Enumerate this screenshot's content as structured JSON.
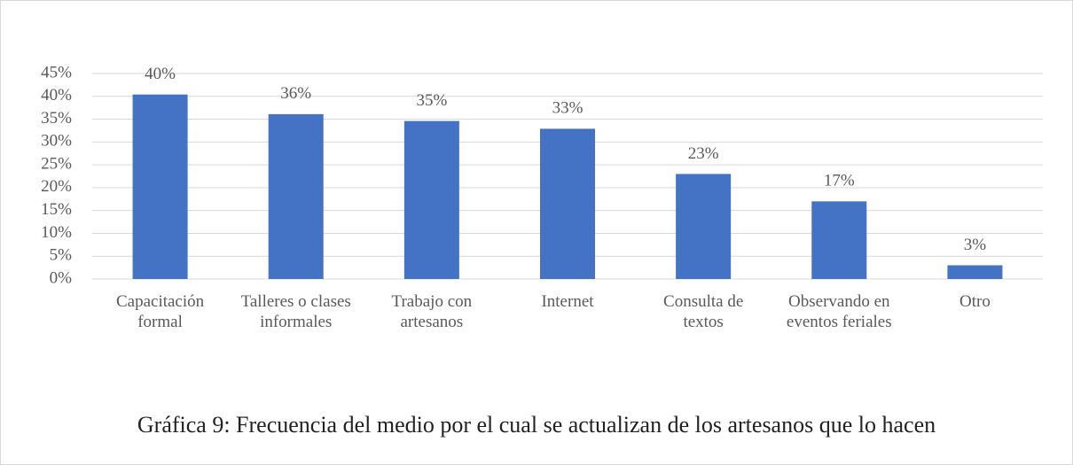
{
  "chart_data": {
    "type": "bar",
    "caption": "Gráfica 9: Frecuencia del medio por el cual se actualizan de los artesanos que lo hacen",
    "categories": [
      "Capacitación formal",
      "Talleres o clases informales",
      "Trabajo con artesanos",
      "Internet",
      "Consulta de textos",
      "Observando en eventos feriales",
      "Otro"
    ],
    "values": [
      40.4,
      36.1,
      34.6,
      32.9,
      23,
      17,
      3
    ],
    "value_labels": [
      "40%",
      "36%",
      "35%",
      "33%",
      "23%",
      "17%",
      "3%"
    ],
    "color": "#4472c4",
    "ylim": [
      0,
      45
    ],
    "yticks": [
      {
        "value": 0,
        "label": "0%"
      },
      {
        "value": 5,
        "label": "5%"
      },
      {
        "value": 10,
        "label": "10%"
      },
      {
        "value": 15,
        "label": "15%"
      },
      {
        "value": 20,
        "label": "20%"
      },
      {
        "value": 25,
        "label": "25%"
      },
      {
        "value": 30,
        "label": "30%"
      },
      {
        "value": 35,
        "label": "35%"
      },
      {
        "value": 40,
        "label": "40%"
      },
      {
        "value": 45,
        "label": "45%"
      }
    ],
    "grid": true
  }
}
